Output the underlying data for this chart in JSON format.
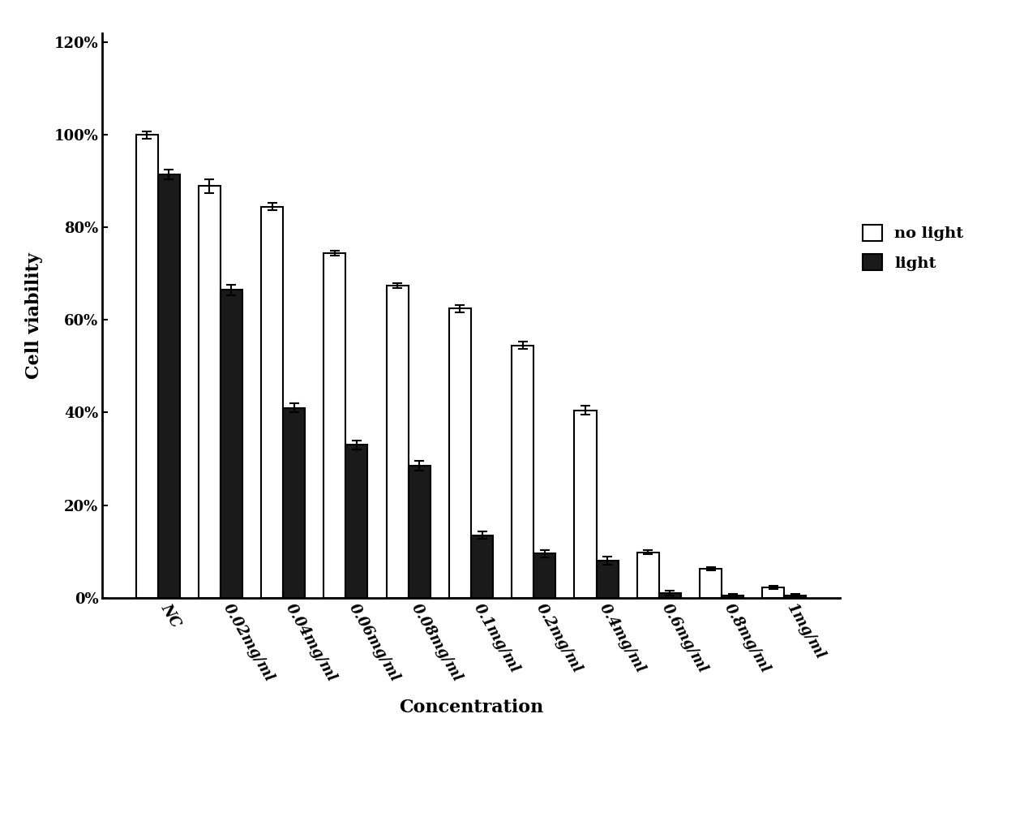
{
  "categories": [
    "NC",
    "0.02mg/ml",
    "0.04mg/ml",
    "0.06mg/ml",
    "0.08mg/ml",
    "0.1mg/ml",
    "0.2mg/ml",
    "0.4mg/ml",
    "0.6mg/ml",
    "0.8mg/ml",
    "1mg/ml"
  ],
  "no_light": [
    1.0,
    0.89,
    0.845,
    0.745,
    0.675,
    0.625,
    0.545,
    0.405,
    0.098,
    0.062,
    0.022
  ],
  "light": [
    0.915,
    0.665,
    0.41,
    0.33,
    0.285,
    0.135,
    0.095,
    0.08,
    0.01,
    0.005,
    0.005
  ],
  "no_light_err": [
    0.008,
    0.015,
    0.008,
    0.005,
    0.005,
    0.008,
    0.008,
    0.01,
    0.004,
    0.004,
    0.004
  ],
  "light_err": [
    0.01,
    0.012,
    0.01,
    0.01,
    0.01,
    0.008,
    0.008,
    0.008,
    0.005,
    0.003,
    0.003
  ],
  "bar_width": 0.35,
  "no_light_color": "#ffffff",
  "light_color": "#1a1a1a",
  "edge_color": "#000000",
  "ylabel": "Cell viability",
  "xlabel": "Concentration",
  "ylim": [
    0,
    1.22
  ],
  "yticks": [
    0,
    0.2,
    0.4,
    0.6,
    0.8,
    1.0,
    1.2
  ],
  "ytick_labels": [
    "0%",
    "20%",
    "40%",
    "60%",
    "80%",
    "100%",
    "120%"
  ],
  "legend_no_light": "no light",
  "legend_light": "light",
  "figsize": [
    12.63,
    10.23
  ],
  "dpi": 100
}
